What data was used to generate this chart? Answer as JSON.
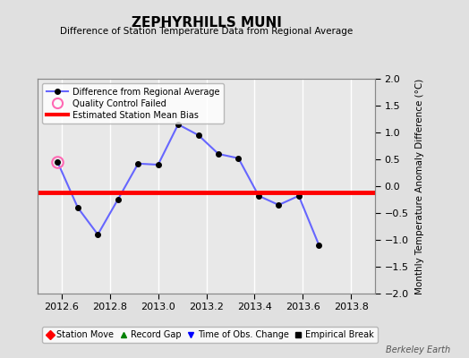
{
  "title": "ZEPHYRHILLS MUNI",
  "subtitle": "Difference of Station Temperature Data from Regional Average",
  "ylabel": "Monthly Temperature Anomaly Difference (°C)",
  "xlabel_ticks": [
    2012.6,
    2012.8,
    2013.0,
    2013.2,
    2013.4,
    2013.6,
    2013.8
  ],
  "xlim": [
    2012.5,
    2013.9
  ],
  "ylim": [
    -2,
    2
  ],
  "yticks": [
    -2,
    -1.5,
    -1,
    -0.5,
    0,
    0.5,
    1,
    1.5,
    2
  ],
  "line_x": [
    2012.583,
    2012.667,
    2012.75,
    2012.833,
    2012.917,
    2013.0,
    2013.083,
    2013.167,
    2013.25,
    2013.333,
    2013.417,
    2013.5,
    2013.583,
    2013.667,
    2013.75
  ],
  "line_y": [
    0.45,
    -0.4,
    -0.9,
    -0.25,
    0.42,
    0.4,
    1.15,
    0.95,
    0.6,
    0.52,
    -0.18,
    -0.35,
    -0.18,
    -1.1,
    null
  ],
  "qc_failed_x": [
    2012.583
  ],
  "qc_failed_y": [
    0.45
  ],
  "bias_y": -0.12,
  "line_color": "#6666ff",
  "line_marker_color": "#000000",
  "qc_color": "#ff69b4",
  "bias_color": "#ff0000",
  "outer_bg": "#e0e0e0",
  "plot_bg": "#e8e8e8",
  "grid_color": "#ffffff",
  "watermark": "Berkeley Earth",
  "legend1_items": [
    "Difference from Regional Average",
    "Quality Control Failed",
    "Estimated Station Mean Bias"
  ],
  "legend2_items": [
    "Station Move",
    "Record Gap",
    "Time of Obs. Change",
    "Empirical Break"
  ]
}
